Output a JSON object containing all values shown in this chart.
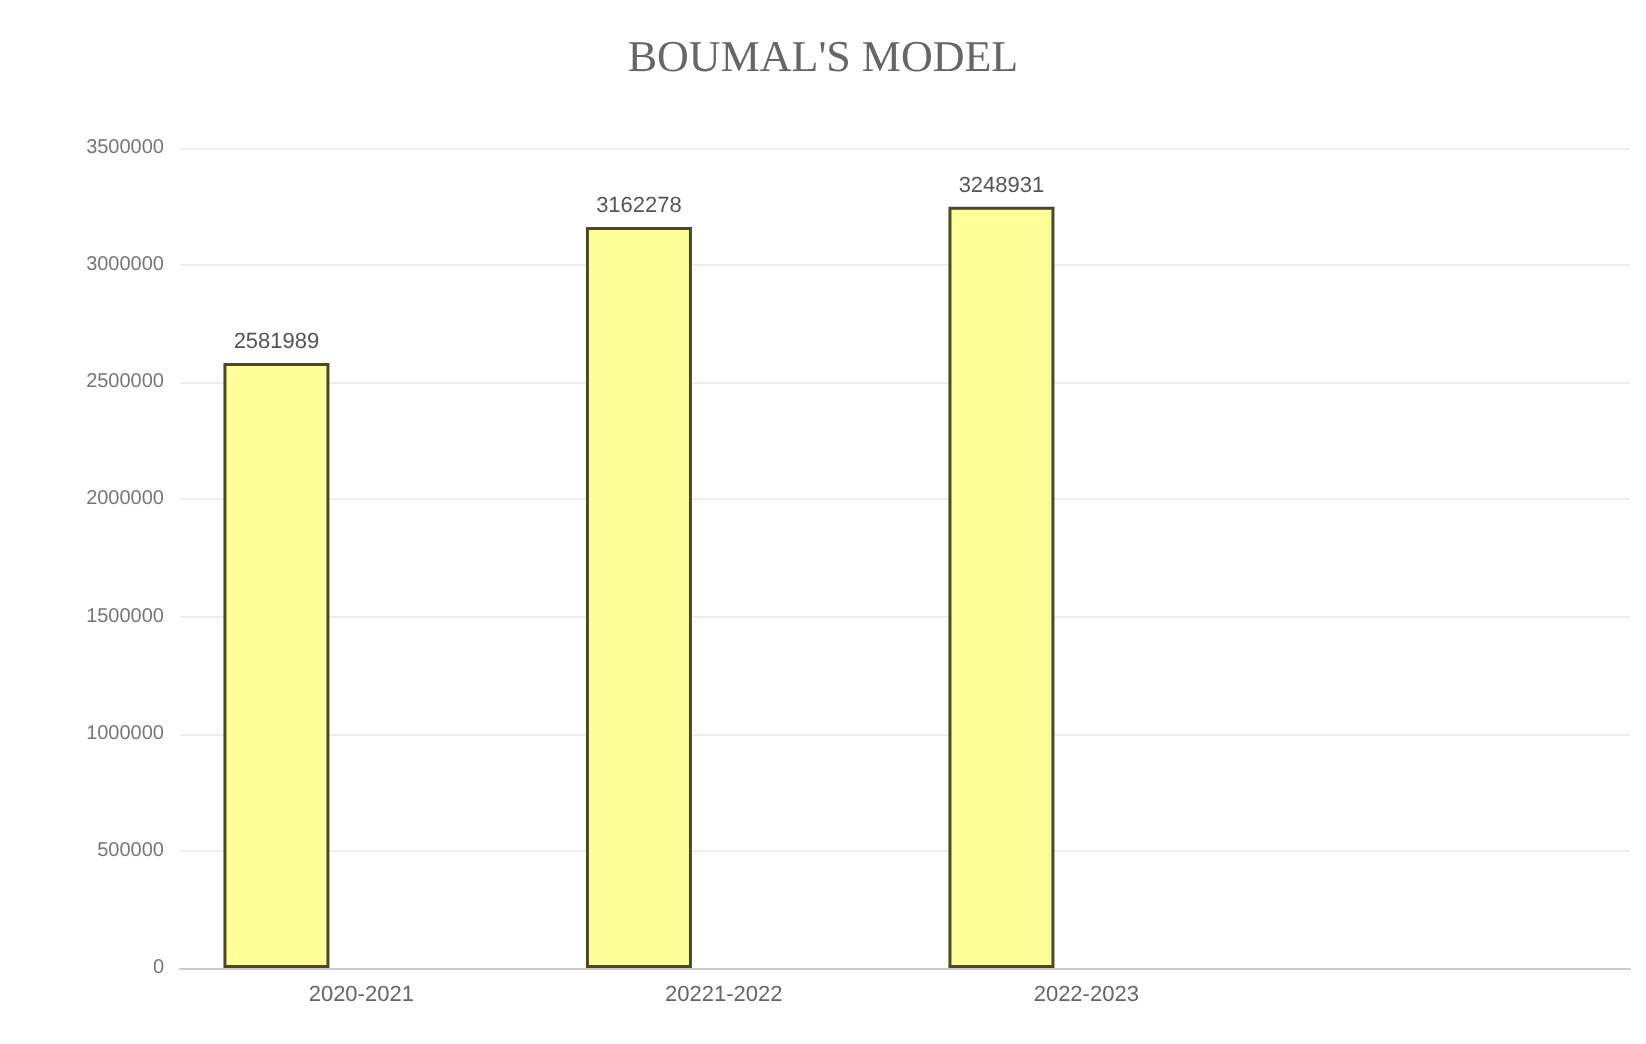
{
  "chart_data": {
    "type": "bar",
    "title": "BOUMAL'S MODEL",
    "categories": [
      "2020-2021",
      "20221-2022",
      "2022-2023",
      null
    ],
    "series": [
      {
        "color": "#ffff99",
        "values": [
          2581989,
          3162278,
          3248931,
          null
        ]
      }
    ],
    "ylim": [
      0,
      3500000
    ],
    "yticks": [
      0,
      500000,
      1000000,
      1500000,
      2000000,
      2500000,
      3000000,
      3500000
    ],
    "grid": "y",
    "data_labels": true
  }
}
